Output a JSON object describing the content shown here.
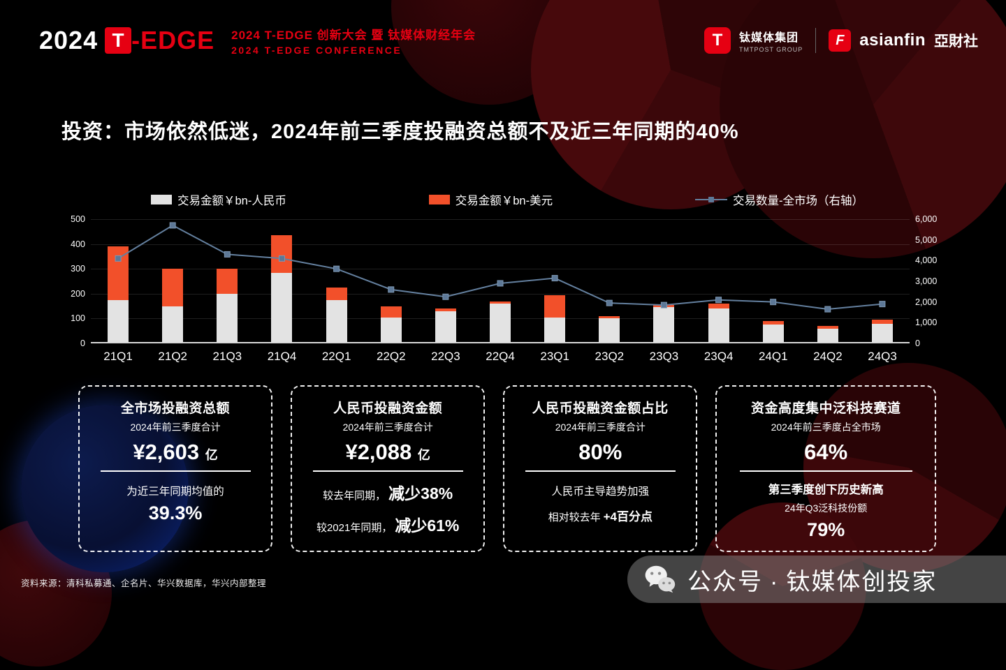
{
  "header": {
    "logo_year": "2024",
    "logo_t": "T",
    "logo_name": "-EDGE",
    "subtitle_line1": "2024 T-EDGE 创新大会 暨 钛媒体财经年会",
    "subtitle_line2": "2024 T-EDGE CONFERENCE",
    "tmt_logo_letter": "T",
    "tmtpost_name": "钛媒体集团",
    "tmtpost_sub": "TMTPOST GROUP",
    "asianfin_logo_letter": "F",
    "asianfin_name": "asianfin",
    "asianfin_cn": "亞財社"
  },
  "title": "投资：市场依然低迷，2024年前三季度投融资总额不及近三年同期的40%",
  "chart_data": {
    "type": "bar+line",
    "legend_position": "top",
    "categories": [
      "21Q1",
      "21Q2",
      "21Q3",
      "21Q4",
      "22Q1",
      "22Q2",
      "22Q3",
      "22Q4",
      "23Q1",
      "23Q2",
      "23Q3",
      "23Q4",
      "24Q1",
      "24Q2",
      "24Q3"
    ],
    "series": [
      {
        "name": "交易金额￥bn-人民币",
        "type": "bar",
        "stack": "amount",
        "color": "#e3e3e3",
        "values": [
          175,
          150,
          200,
          285,
          175,
          105,
          130,
          160,
          105,
          100,
          145,
          140,
          75,
          60,
          80
        ]
      },
      {
        "name": "交易金额￥bn-美元",
        "type": "bar",
        "stack": "amount",
        "color": "#f2502a",
        "values": [
          215,
          150,
          100,
          150,
          50,
          45,
          10,
          10,
          90,
          10,
          10,
          20,
          15,
          10,
          15
        ]
      },
      {
        "name": "交易数量-全市场（右轴）",
        "type": "line",
        "axis": "right",
        "color": "#64809f",
        "values": [
          4100,
          5700,
          4300,
          4100,
          3600,
          2600,
          2250,
          2900,
          3150,
          1950,
          1850,
          2100,
          2000,
          1650,
          1900
        ]
      }
    ],
    "left_axis": {
      "min": 0,
      "max": 500,
      "ticks": [
        "500",
        "400",
        "300",
        "200",
        "100",
        "0"
      ]
    },
    "right_axis": {
      "min": 0,
      "max": 6000,
      "ticks": [
        "6,000",
        "5,000",
        "4,000",
        "3,000",
        "2,000",
        "1,000",
        "0"
      ]
    }
  },
  "cards": [
    {
      "title": "全市场投融资总额",
      "subtitle": "2024年前三季度合计",
      "value": "¥2,603",
      "value_unit": "亿",
      "note": "为近三年同期均值的",
      "note_value": "39.3%"
    },
    {
      "title": "人民币投融资金额",
      "subtitle": "2024年前三季度合计",
      "value": "¥2,088",
      "value_unit": "亿",
      "rows": [
        {
          "label": "较去年同期，",
          "value": "减少38%"
        },
        {
          "label": "较2021年同期，",
          "value": "减少61%"
        }
      ]
    },
    {
      "title": "人民币投融资金额占比",
      "subtitle": "2024年前三季度合计",
      "value": "80%",
      "note": "人民币主导趋势加强",
      "row_label": "相对较去年",
      "row_value": "+4百分点"
    },
    {
      "title": "资金高度集中泛科技赛道",
      "subtitle": "2024年前三季度占全市场",
      "value": "64%",
      "note": "第三季度创下历史新高",
      "sub_note": "24年Q3泛科技份额",
      "note_value": "79%"
    }
  ],
  "source": "资料来源：清科私募通、企名片、华兴数据库，华兴内部整理",
  "footer_badge": {
    "prefix": "公众号",
    "sep": "·",
    "name": "钛媒体创投家"
  }
}
